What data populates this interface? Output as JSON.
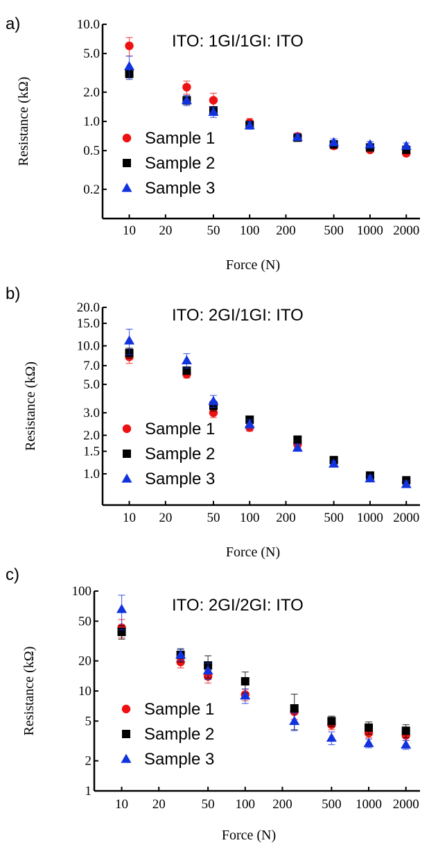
{
  "colors": {
    "sample1": "#ee1111",
    "sample2": "#000000",
    "sample3": "#1133dd"
  },
  "marker_shapes": [
    "circle",
    "square",
    "triangle"
  ],
  "chart_data": [
    {
      "panel": "a)",
      "type": "scatter",
      "title": "ITO: 1GI/1GI: ITO",
      "xlabel": "Force (N)",
      "ylabel": "Resistance (kΩ)",
      "xscale": "log",
      "yscale": "log",
      "xlim": [
        6,
        2600
      ],
      "ylim": [
        0.1,
        10
      ],
      "xticks": [
        10,
        20,
        50,
        100,
        200,
        500,
        1000,
        2000
      ],
      "xtick_labels": [
        "10",
        "20",
        "50",
        "100",
        "200",
        "500",
        "1000",
        "2000"
      ],
      "yticks": [
        0.2,
        0.5,
        1.0,
        2.0,
        5.0,
        10.0
      ],
      "ytick_labels": [
        "0.2",
        "0.5",
        "1.0",
        "2.0",
        "5.0",
        "10.0"
      ],
      "legend_position": "bottom-left",
      "grid": false,
      "x": [
        10,
        30,
        50,
        100,
        250,
        500,
        1000,
        2000
      ],
      "series": [
        {
          "name": "Sample 1",
          "marker": "circle",
          "values": [
            6.0,
            2.25,
            1.65,
            0.97,
            0.7,
            0.56,
            0.51,
            0.47
          ],
          "errors": [
            1.3,
            0.35,
            0.3,
            0.1,
            0.06,
            0.04,
            0.03,
            0.03
          ]
        },
        {
          "name": "Sample 2",
          "marker": "square",
          "values": [
            3.1,
            1.65,
            1.3,
            0.92,
            0.68,
            0.58,
            0.54,
            0.51
          ],
          "errors": [
            0.3,
            0.15,
            0.1,
            0.06,
            0.05,
            0.04,
            0.03,
            0.03
          ]
        },
        {
          "name": "Sample 3",
          "marker": "triangle",
          "values": [
            3.7,
            1.65,
            1.25,
            0.91,
            0.69,
            0.61,
            0.58,
            0.56
          ],
          "errors": [
            1.0,
            0.2,
            0.15,
            0.08,
            0.05,
            0.05,
            0.04,
            0.04
          ]
        }
      ]
    },
    {
      "panel": "b)",
      "type": "scatter",
      "title": "ITO: 2GI/1GI: ITO",
      "xlabel": "Force (N)",
      "ylabel": "Resistance (kΩ)",
      "xscale": "log",
      "yscale": "log",
      "xlim": [
        6,
        2600
      ],
      "ylim": [
        0.57,
        20
      ],
      "xticks": [
        10,
        20,
        50,
        100,
        200,
        500,
        1000,
        2000
      ],
      "xtick_labels": [
        "10",
        "20",
        "50",
        "100",
        "200",
        "500",
        "1000",
        "2000"
      ],
      "yticks": [
        1.0,
        1.5,
        2.0,
        3.0,
        5.0,
        7.0,
        10.0,
        15.0,
        20.0
      ],
      "ytick_labels": [
        "1.0",
        "1.5",
        "2.0",
        "3.0",
        "5.0",
        "7.0",
        "10.0",
        "15.0",
        "20.0"
      ],
      "legend_position": "bottom-left",
      "grid": false,
      "x": [
        10,
        30,
        50,
        100,
        250,
        500,
        1000,
        2000
      ],
      "series": [
        {
          "name": "Sample 1",
          "marker": "circle",
          "values": [
            8.2,
            6.0,
            3.0,
            2.3,
            1.7,
            1.25,
            0.95,
            0.87
          ],
          "errors": [
            0.9,
            0.4,
            0.25,
            0.15,
            0.1,
            0.06,
            0.04,
            0.04
          ]
        },
        {
          "name": "Sample 2",
          "marker": "square",
          "values": [
            8.8,
            6.4,
            3.4,
            2.65,
            1.85,
            1.28,
            0.97,
            0.89
          ],
          "errors": [
            0.8,
            0.4,
            0.3,
            0.15,
            0.1,
            0.06,
            0.04,
            0.04
          ]
        },
        {
          "name": "Sample 3",
          "marker": "triangle",
          "values": [
            11.0,
            7.7,
            3.7,
            2.45,
            1.6,
            1.2,
            0.92,
            0.83
          ],
          "errors": [
            2.5,
            1.0,
            0.4,
            0.2,
            0.1,
            0.06,
            0.05,
            0.05
          ]
        }
      ]
    },
    {
      "panel": "c)",
      "type": "scatter",
      "title": "ITO: 2GI/2GI: ITO",
      "xlabel": "Force (N)",
      "ylabel": "Resistance (kΩ)",
      "xscale": "log",
      "yscale": "log",
      "xlim": [
        6,
        2600
      ],
      "ylim": [
        1,
        100
      ],
      "xticks": [
        10,
        20,
        50,
        100,
        200,
        500,
        1000,
        2000
      ],
      "xtick_labels": [
        "10",
        "20",
        "50",
        "100",
        "200",
        "500",
        "1000",
        "2000"
      ],
      "yticks": [
        1,
        2,
        5,
        10,
        20,
        50,
        100
      ],
      "ytick_labels": [
        "1",
        "2",
        "5",
        "10",
        "20",
        "50",
        "100"
      ],
      "legend_position": "bottom-left",
      "grid": false,
      "x": [
        10,
        30,
        50,
        100,
        250,
        500,
        1000,
        2000
      ],
      "series": [
        {
          "name": "Sample 1",
          "marker": "circle",
          "values": [
            43,
            19.5,
            14,
            9.2,
            6.2,
            4.6,
            3.8,
            3.6
          ],
          "errors": [
            9,
            2.5,
            2,
            1.2,
            1.0,
            0.5,
            0.4,
            0.4
          ]
        },
        {
          "name": "Sample 2",
          "marker": "square",
          "values": [
            39,
            23,
            18,
            12.5,
            6.7,
            5.0,
            4.3,
            4.0
          ],
          "errors": [
            6,
            3.5,
            4.5,
            3,
            2.6,
            0.6,
            0.6,
            0.6
          ]
        },
        {
          "name": "Sample 3",
          "marker": "triangle",
          "values": [
            66,
            23,
            16,
            9.0,
            5.0,
            3.4,
            3.0,
            2.9
          ],
          "errors": [
            25,
            3,
            3,
            1.5,
            1.0,
            0.5,
            0.3,
            0.3
          ]
        }
      ]
    }
  ]
}
